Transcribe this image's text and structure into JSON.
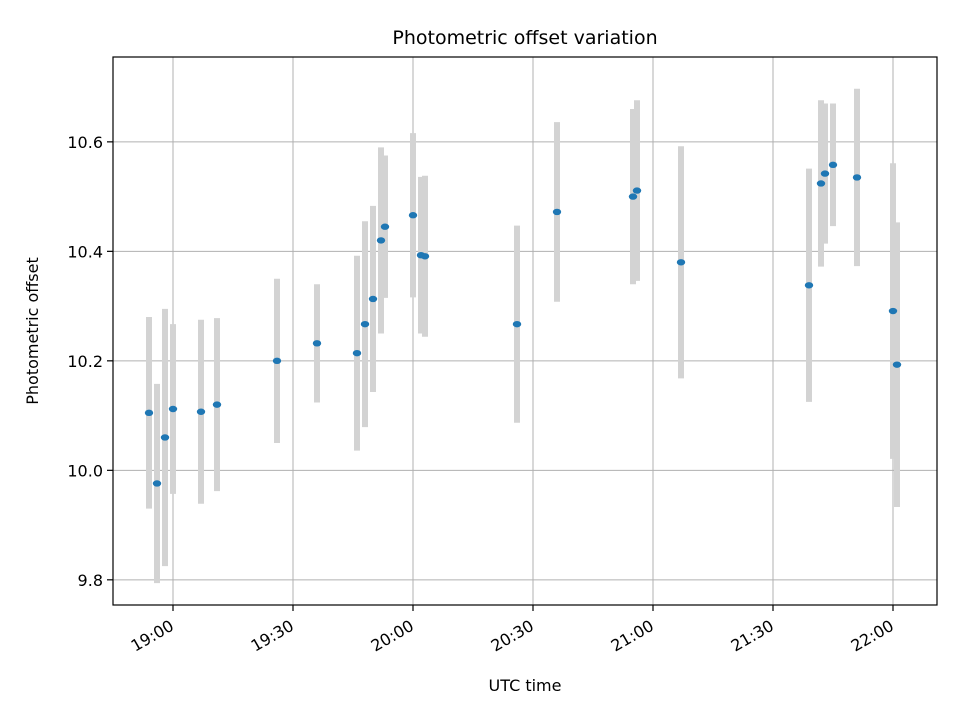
{
  "chart_data": {
    "type": "scatter",
    "title": "Photometric offset variation",
    "xlabel": "UTC time",
    "ylabel": "Photometric offset",
    "x_range": [
      "18:45",
      "22:11"
    ],
    "ylim": [
      9.754,
      10.755
    ],
    "grid": true,
    "x_ticks": [
      "19:00",
      "19:30",
      "20:00",
      "20:30",
      "21:00",
      "21:30",
      "22:00"
    ],
    "y_ticks": [
      "9.8",
      "10.0",
      "10.2",
      "10.4",
      "10.6"
    ],
    "y_tick_values": [
      9.8,
      10.0,
      10.2,
      10.4,
      10.6
    ],
    "colors": {
      "point": "#1f77b4",
      "errorbar": "#d3d3d3",
      "grid": "#b0b0b0"
    },
    "points": [
      {
        "x": "18:54",
        "y": 10.105,
        "err": 0.175
      },
      {
        "x": "18:56",
        "y": 9.976,
        "err": 0.182
      },
      {
        "x": "18:58",
        "y": 10.06,
        "err": 0.235
      },
      {
        "x": "19:00",
        "y": 10.112,
        "err": 0.155
      },
      {
        "x": "19:07",
        "y": 10.107,
        "err": 0.168
      },
      {
        "x": "19:11",
        "y": 10.12,
        "err": 0.158
      },
      {
        "x": "19:26",
        "y": 10.2,
        "err": 0.15
      },
      {
        "x": "19:36",
        "y": 10.232,
        "err": 0.108
      },
      {
        "x": "19:46",
        "y": 10.214,
        "err": 0.178
      },
      {
        "x": "19:48",
        "y": 10.267,
        "err": 0.188
      },
      {
        "x": "19:50",
        "y": 10.313,
        "err": 0.17
      },
      {
        "x": "19:52",
        "y": 10.42,
        "err": 0.17
      },
      {
        "x": "19:53",
        "y": 10.445,
        "err": 0.13
      },
      {
        "x": "20:00",
        "y": 10.466,
        "err": 0.15
      },
      {
        "x": "20:02",
        "y": 10.393,
        "err": 0.143
      },
      {
        "x": "20:03",
        "y": 10.391,
        "err": 0.147
      },
      {
        "x": "20:26",
        "y": 10.267,
        "err": 0.18
      },
      {
        "x": "20:36",
        "y": 10.472,
        "err": 0.164
      },
      {
        "x": "20:55",
        "y": 10.5,
        "err": 0.16
      },
      {
        "x": "20:56",
        "y": 10.511,
        "err": 0.165
      },
      {
        "x": "21:07",
        "y": 10.38,
        "err": 0.212
      },
      {
        "x": "21:39",
        "y": 10.338,
        "err": 0.213
      },
      {
        "x": "21:42",
        "y": 10.524,
        "err": 0.152
      },
      {
        "x": "21:43",
        "y": 10.542,
        "err": 0.128
      },
      {
        "x": "21:45",
        "y": 10.558,
        "err": 0.112
      },
      {
        "x": "21:51",
        "y": 10.535,
        "err": 0.162
      },
      {
        "x": "22:00",
        "y": 10.291,
        "err": 0.27
      },
      {
        "x": "22:01",
        "y": 10.193,
        "err": 0.26
      }
    ]
  }
}
